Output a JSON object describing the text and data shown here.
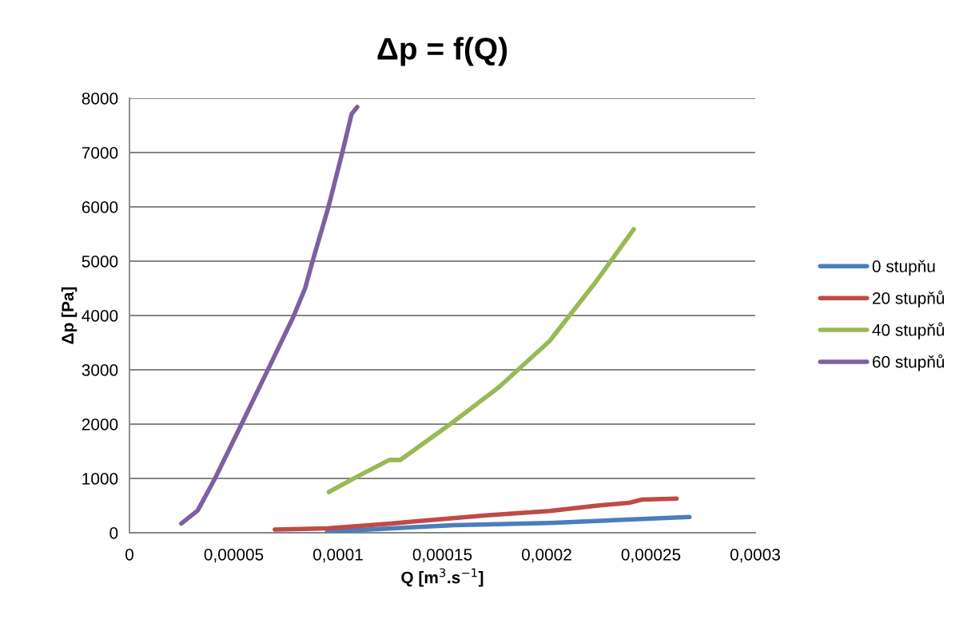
{
  "chart_data": {
    "type": "line",
    "title": "Δp = f(Q)",
    "xlabel": "Q [m$^{3}$.s$^{−1}$]",
    "ylabel": "Δp [Pa]",
    "xlim": [
      0,
      0.0003
    ],
    "xticks": [
      {
        "value": 0,
        "label": "0"
      },
      {
        "value": 5e-05,
        "label": "0,00005"
      },
      {
        "value": 0.0001,
        "label": "0,0001"
      },
      {
        "value": 0.00015,
        "label": "0,00015"
      },
      {
        "value": 0.0002,
        "label": "0,0002"
      },
      {
        "value": 0.00025,
        "label": "0,00025"
      },
      {
        "value": 0.0003,
        "label": "0,0003"
      }
    ],
    "ylim": [
      0,
      8000
    ],
    "yticks": [
      0,
      1000,
      2000,
      3000,
      4000,
      5000,
      6000,
      7000,
      8000
    ],
    "grid": "y",
    "legend": "right",
    "marker": "none",
    "line_style": "solid",
    "series": [
      {
        "name": "0 stupňu",
        "color": "#4a7ebb",
        "x": [
          9.48e-05,
          0.0001558,
          0.0002014,
          0.0002684
        ],
        "values": [
          20,
          140,
          180,
          290
        ]
      },
      {
        "name": "20 stupňů",
        "color": "#be4b48",
        "x": [
          6.97e-05,
          9.48e-05,
          0.0001253,
          0.0001709,
          0.0002014,
          0.0002243,
          0.0002395,
          0.0002456,
          0.0002623
        ],
        "values": [
          60,
          80,
          170,
          320,
          400,
          500,
          550,
          610,
          630
        ]
      },
      {
        "name": "40 stupňů",
        "color": "#98b954",
        "x": [
          9.56e-05,
          0.0001085,
          0.0001245,
          0.0001298,
          0.0001542,
          0.0001771,
          0.0002014,
          0.0002228,
          0.0002418
        ],
        "values": [
          750,
          1020,
          1340,
          1340,
          2010,
          2680,
          3530,
          4580,
          5590
        ]
      },
      {
        "name": "60 stupňů",
        "color": "#7d60a0",
        "x": [
          2.49e-05,
          3.27e-05,
          4.1e-05,
          5.36e-05,
          6.61e-05,
          7.85e-05,
          8.42e-05,
          8.77e-05,
          9.54e-05,
          0.0001023,
          0.0001065,
          0.0001092
        ],
        "values": [
          170,
          410,
          1000,
          1990,
          2980,
          3970,
          4500,
          4990,
          6000,
          7040,
          7710,
          7840
        ]
      }
    ]
  }
}
